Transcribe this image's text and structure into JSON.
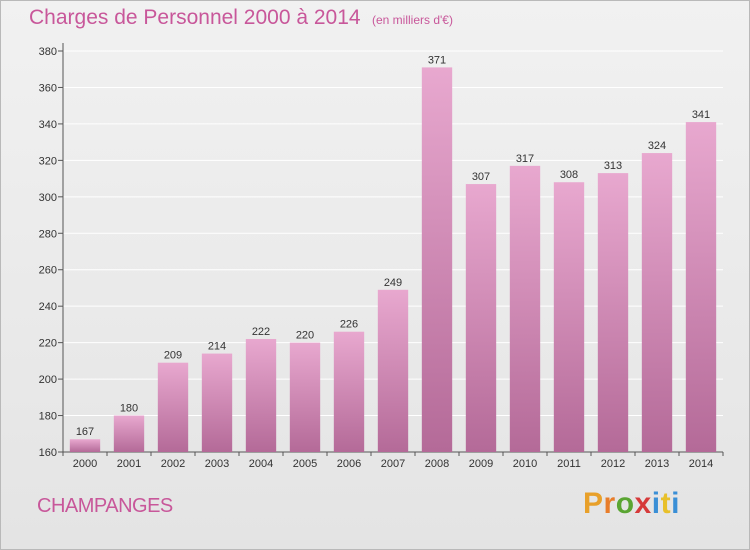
{
  "header": {
    "title": "Charges de Personnel 2000 à 2014",
    "subtitle": "(en milliers d'€)"
  },
  "footer": {
    "place": "CHAMPANGES",
    "brand_letters": [
      "P",
      "r",
      "o",
      "x",
      "i",
      "t",
      "i"
    ],
    "brand_colors": [
      "#e8a02a",
      "#e87d2a",
      "#5aa532",
      "#d63a3a",
      "#3a8fd6",
      "#e8c02a",
      "#3a8fd6"
    ]
  },
  "colors": {
    "bar_top": "#e8a8cf",
    "bar_bottom": "#b46a98",
    "text_accent": "#c8579a",
    "grid": "#ffffff"
  },
  "chart_data": {
    "type": "bar",
    "title": "Charges de Personnel 2000 à 2014",
    "subtitle": "(en milliers d'€)",
    "categories": [
      "2000",
      "2001",
      "2002",
      "2003",
      "2004",
      "2005",
      "2006",
      "2007",
      "2008",
      "2009",
      "2010",
      "2011",
      "2012",
      "2013",
      "2014"
    ],
    "values": [
      167,
      180,
      209,
      214,
      222,
      220,
      226,
      249,
      371,
      307,
      317,
      308,
      313,
      324,
      341
    ],
    "ylim": [
      160,
      380
    ],
    "yticks": [
      160,
      180,
      200,
      220,
      240,
      260,
      280,
      300,
      320,
      340,
      360,
      380
    ],
    "grid": true,
    "data_labels": true,
    "xlabel": "",
    "ylabel": ""
  }
}
